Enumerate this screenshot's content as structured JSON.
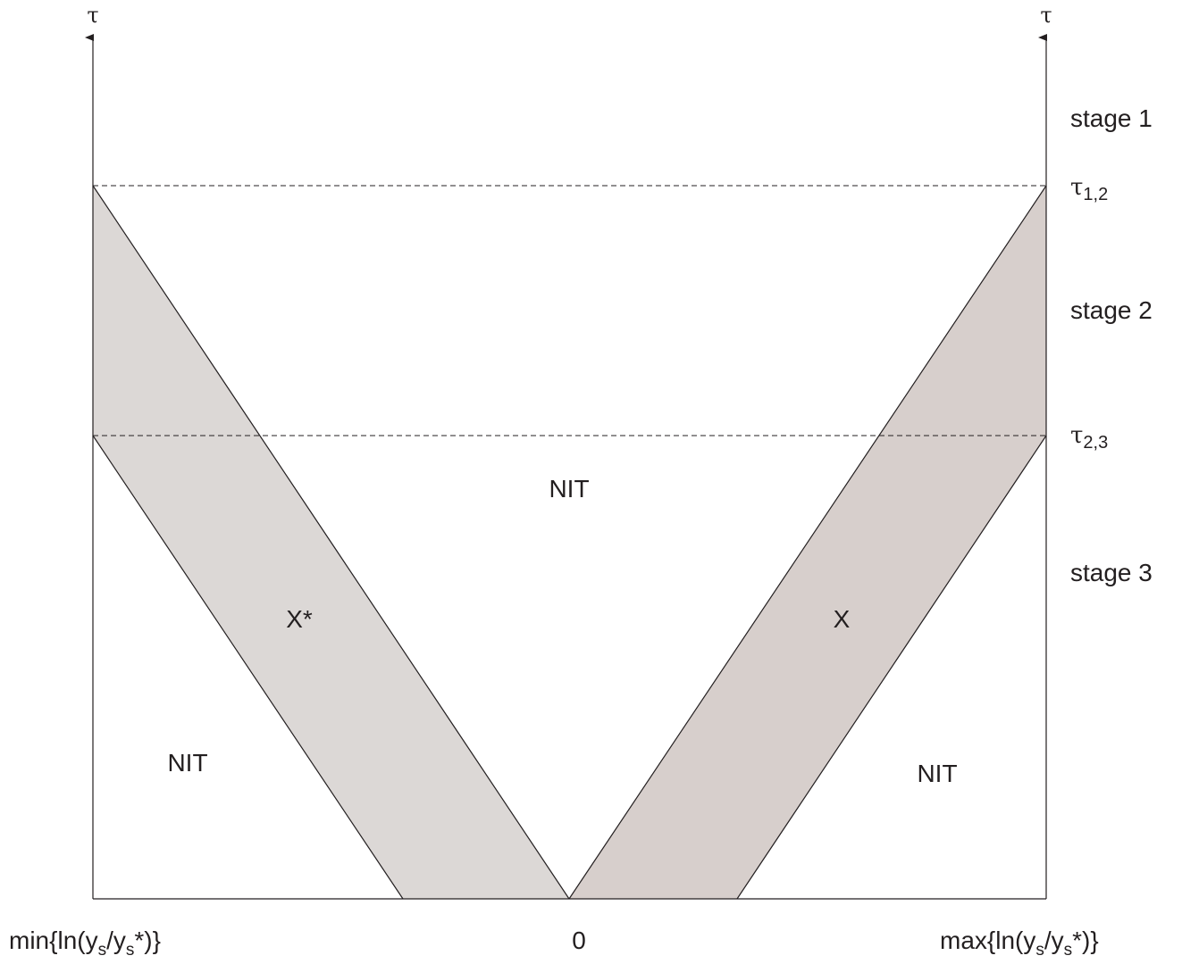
{
  "axes": {
    "left_axis_label": "τ",
    "right_axis_label": "τ",
    "x_min_label": {
      "prefix": "min{ln(y",
      "sub1": "s",
      "mid": "/y",
      "sub2": "s",
      "suffix": "*)}"
    },
    "x_zero_label": "0",
    "x_max_label": {
      "prefix": "max{ln(y",
      "sub1": "s",
      "mid": "/y",
      "sub2": "s",
      "suffix": "*)}"
    }
  },
  "thresholds": {
    "tau_1_2": {
      "symbol": "τ",
      "sub": "1,2"
    },
    "tau_2_3": {
      "symbol": "τ",
      "sub": "2,3"
    }
  },
  "stages": {
    "stage1": "stage 1",
    "stage2": "stage 2",
    "stage3": "stage 3"
  },
  "regions": {
    "nit_center": "NIT",
    "nit_left": "NIT",
    "nit_right": "NIT",
    "x_star": "X*",
    "x": "X"
  },
  "colors": {
    "x_star_band": "#dcd8d6",
    "x_band": "#d7cfcc",
    "line": "#231f20"
  }
}
